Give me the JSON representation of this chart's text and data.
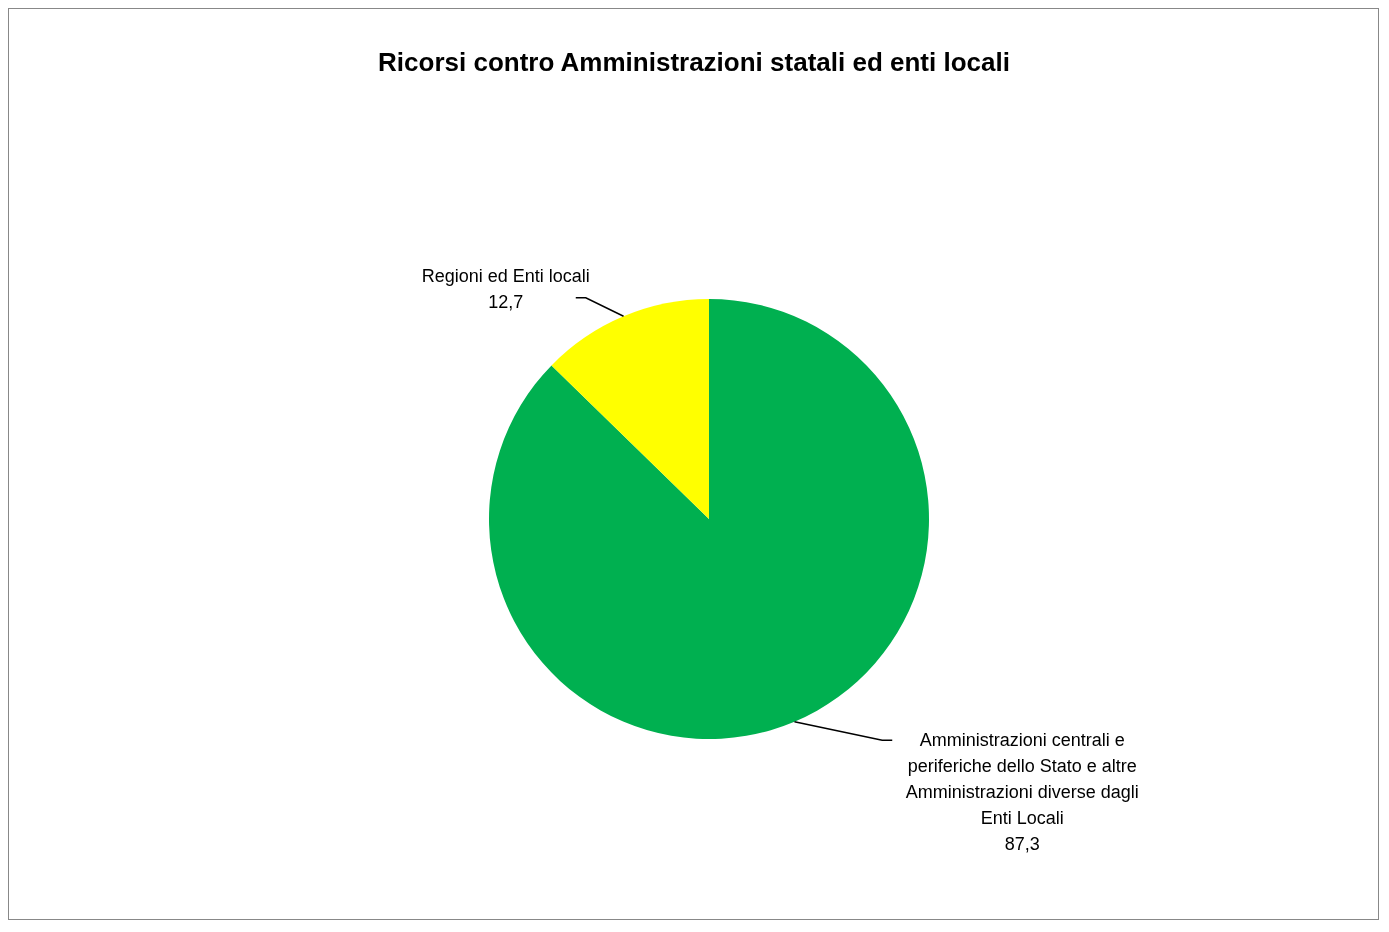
{
  "chart_data": {
    "type": "pie",
    "title": "Ricorsi contro Amministrazioni statali ed enti locali",
    "categories": [
      "Amministrazioni centrali e periferiche dello Stato e altre Amministrazioni diverse dagli Enti Locali",
      "Regioni ed Enti locali"
    ],
    "values": [
      87.3,
      12.7
    ],
    "colors": [
      "#00b050",
      "#ffff00"
    ],
    "value_labels": [
      "87,3",
      "12,7"
    ]
  }
}
